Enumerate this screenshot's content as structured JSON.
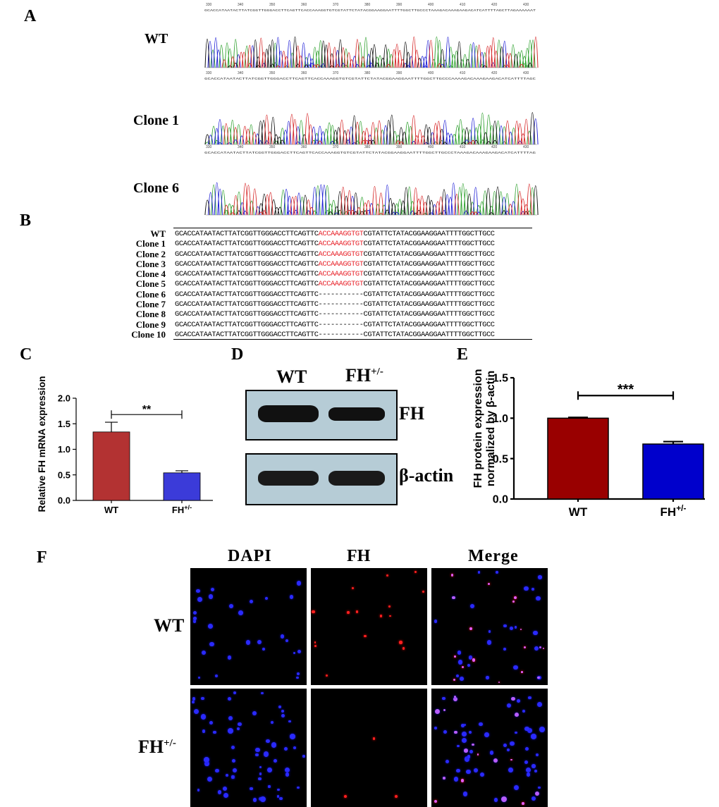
{
  "panels": {
    "A": "A",
    "B": "B",
    "C": "C",
    "D": "D",
    "E": "E",
    "F": "F"
  },
  "sequencing": {
    "rows": [
      {
        "label": "WT",
        "seq": "GCACCATAATACTTATCGGTTGGGACCTTCAGTTCACCAAAGGTGTCGTATTCTATACGGAAGGAATTTTGGCTTGCCCTAAAGACAAAGAAGACATCATTTTAGCTTAGAAAAAAT"
      },
      {
        "label": "Clone 1",
        "seq": "GCACCATAATACTTATCGGTTGGGACCTTCAGTTCACCAAAGGTGTCGTATTCTATACGGAAGGAATTTTGGCTTGCCCAAAAGACAAAGAAGACATCATTTTAGC"
      },
      {
        "label": "Clone 6",
        "seq": "GCACCATAATACTTATCGGTTGGGACCTTCAGTTCACCAAAGGTGTCGTATTCTATACGGAAGGAATTTTGGCTTGCCCTAAAGACAAAGAAGACATCATTTTAG"
      }
    ],
    "ruler_1": [
      "330",
      "340",
      "350",
      "360",
      "370",
      "380",
      "390",
      "400",
      "410",
      "420",
      "430"
    ],
    "ruler_2": [
      "330",
      "340",
      "350",
      "360",
      "370",
      "380",
      "390",
      "400",
      "410",
      "420",
      "430"
    ],
    "ruler_3": [
      "330",
      "340",
      "350",
      "360",
      "370",
      "380",
      "390",
      "400",
      "410",
      "420",
      "430"
    ]
  },
  "alignment": {
    "prefix": "GCACCATAATACTTATCGGTTGGGACCTTCAGTTC",
    "insert": "ACCAAAGGTGT",
    "gap": "-----------",
    "suffix": "CGTATTCTATACGGAAGGAATTTTGGCTTGCC",
    "rows": [
      {
        "name": "WT",
        "present": true
      },
      {
        "name": "Clone 1",
        "present": true
      },
      {
        "name": "Clone 2",
        "present": true
      },
      {
        "name": "Clone 3",
        "present": true
      },
      {
        "name": "Clone 4",
        "present": true
      },
      {
        "name": "Clone 5",
        "present": true
      },
      {
        "name": "Clone 6",
        "present": false
      },
      {
        "name": "Clone 7",
        "present": false
      },
      {
        "name": "Clone 8",
        "present": false
      },
      {
        "name": "Clone 9",
        "present": false
      },
      {
        "name": "Clone 10",
        "present": false
      }
    ]
  },
  "chart_data": [
    {
      "panel": "C",
      "type": "bar",
      "categories": [
        "WT",
        "FH+/-"
      ],
      "category_labels": [
        {
          "base": "WT",
          "sup": ""
        },
        {
          "base": "FH",
          "sup": "+/-"
        }
      ],
      "values": [
        1.34,
        0.54
      ],
      "errors": [
        0.19,
        0.04
      ],
      "colors": [
        "#b33232",
        "#3b3bd9"
      ],
      "ylabel": "Relative FH mRNA expression",
      "ylim": [
        0,
        2.0
      ],
      "yticks": [
        "0.0",
        "0.5",
        "1.0",
        "1.5",
        "2.0"
      ],
      "significance": "**"
    },
    {
      "panel": "E",
      "type": "bar",
      "categories": [
        "WT",
        "FH+/-"
      ],
      "category_labels": [
        {
          "base": "WT",
          "sup": ""
        },
        {
          "base": "FH",
          "sup": "+/-"
        }
      ],
      "values": [
        1.0,
        0.68
      ],
      "errors": [
        0.01,
        0.03
      ],
      "colors": [
        "#990000",
        "#0000cc"
      ],
      "ylabel_lines": [
        "FH protein expression",
        "normalized by β-actin"
      ],
      "ylim": [
        0,
        1.5
      ],
      "yticks": [
        "0.0",
        "0.5",
        "1.0",
        "1.5"
      ],
      "significance": "***"
    }
  ],
  "blot": {
    "lanes": [
      {
        "base": "WT",
        "sup": ""
      },
      {
        "base": "FH",
        "sup": "+/-"
      }
    ],
    "bands": [
      {
        "label": "FH",
        "intensities": [
          1.0,
          0.75
        ]
      },
      {
        "label": "β-actin",
        "intensities": [
          0.9,
          0.9
        ]
      }
    ]
  },
  "immuno": {
    "columns": [
      "DAPI",
      "FH",
      "Merge"
    ],
    "rows": [
      {
        "base": "WT",
        "sup": ""
      },
      {
        "base": "FH",
        "sup": "+/-"
      }
    ]
  }
}
